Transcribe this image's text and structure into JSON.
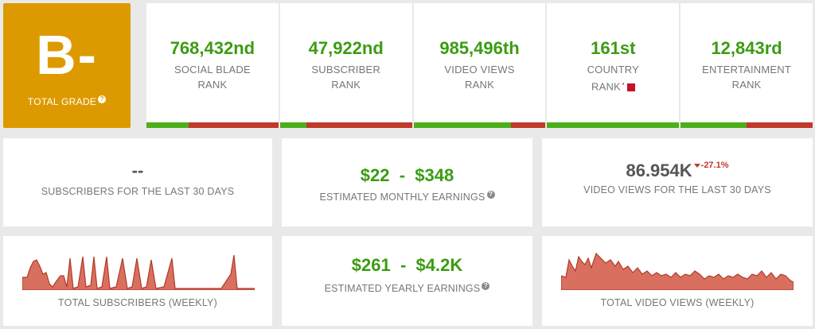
{
  "grade": {
    "letter": "B-",
    "label": "TOTAL GRADE",
    "help_glyph": "?"
  },
  "ranks": [
    {
      "value": "768,432nd",
      "line1": "SOCIAL BLADE",
      "line2": "RANK",
      "green_fraction": 0.32
    },
    {
      "value": "47,922nd",
      "line1": "SUBSCRIBER",
      "line2": "RANK",
      "green_fraction": 0.2
    },
    {
      "value": "985,496th",
      "line1": "VIDEO VIEWS",
      "line2": "RANK",
      "green_fraction": 0.74
    },
    {
      "value": "161st",
      "line1": "COUNTRY",
      "line2": "RANK",
      "green_fraction": 1.0
    },
    {
      "value": "12,843rd",
      "line1": "ENTERTAINMENT",
      "line2": "RANK",
      "green_fraction": 0.5
    }
  ],
  "country_flag_color": "#c8102e",
  "subs30": {
    "value": "--",
    "label": "SUBSCRIBERS FOR THE LAST 30 DAYS"
  },
  "monthly": {
    "low": "$22",
    "sep": "-",
    "high": "$348",
    "label": "ESTIMATED MONTHLY EARNINGS",
    "help_glyph": "?"
  },
  "views30": {
    "value": "86.954K",
    "delta": "-27.1%",
    "label": "VIDEO VIEWS FOR THE LAST 30 DAYS"
  },
  "yearly": {
    "low": "$261",
    "sep": "-",
    "high": "$4.2K",
    "label": "ESTIMATED YEARLY EARNINGS",
    "help_glyph": "?"
  },
  "subs_weekly": {
    "label": "TOTAL SUBSCRIBERS (WEEKLY)"
  },
  "views_weekly": {
    "label": "TOTAL VIDEO VIEWS (WEEKLY)"
  },
  "colors": {
    "grade_bg": "#dd9a00",
    "green": "#3b9c12",
    "red": "#c0392b",
    "spark_fill": "#d9705f",
    "spark_stroke": "#b13a26"
  }
}
